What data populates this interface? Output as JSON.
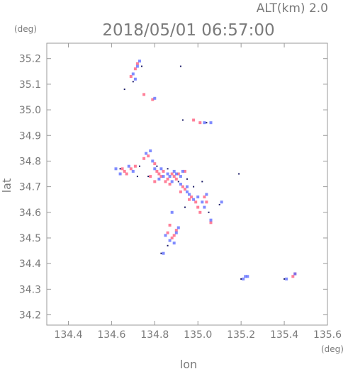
{
  "header": {
    "altitude": "ALT(km) 2.0",
    "timestamp": "2018/05/01 06:57:00",
    "y_unit": "(deg)",
    "x_unit": "(deg)"
  },
  "chart_data": {
    "type": "scatter",
    "title": "2018/05/01 06:57:00",
    "subtitle": "ALT(km) 2.0",
    "xlabel": "lon",
    "ylabel": "lat",
    "xlim": [
      134.3,
      135.6
    ],
    "ylim": [
      34.16,
      35.26
    ],
    "x_ticks": [
      134.4,
      134.6,
      134.8,
      135.0,
      135.2,
      135.4,
      135.6
    ],
    "y_ticks": [
      34.2,
      34.3,
      34.4,
      34.5,
      34.6,
      34.7,
      34.8,
      34.9,
      35.0,
      35.1,
      35.2
    ],
    "x_tick_labels": [
      "134.4",
      "134.6",
      "134.8",
      "135.0",
      "135.2",
      "135.4",
      "135.6"
    ],
    "y_tick_labels": [
      "34.2",
      "34.3",
      "34.4",
      "34.5",
      "34.6",
      "34.7",
      "34.8",
      "34.9",
      "35.0",
      "35.1",
      "35.2"
    ],
    "grid": false,
    "colors": {
      "positive": "#ff5577",
      "negative": "#5566ff",
      "dark": "#000055"
    },
    "series": [
      {
        "color": "positive",
        "points": [
          [
            134.72,
            35.18
          ],
          [
            134.71,
            35.16
          ],
          [
            134.69,
            35.13
          ],
          [
            134.75,
            35.06
          ],
          [
            134.79,
            35.04
          ],
          [
            134.71,
            34.78
          ],
          [
            134.65,
            34.77
          ],
          [
            134.66,
            34.76
          ],
          [
            134.67,
            34.75
          ],
          [
            134.69,
            34.77
          ],
          [
            134.75,
            34.81
          ],
          [
            134.77,
            34.82
          ],
          [
            134.8,
            34.79
          ],
          [
            134.81,
            34.76
          ],
          [
            134.82,
            34.75
          ],
          [
            134.83,
            34.74
          ],
          [
            134.84,
            34.76
          ],
          [
            134.85,
            34.72
          ],
          [
            134.86,
            34.73
          ],
          [
            134.87,
            34.71
          ],
          [
            134.88,
            34.75
          ],
          [
            134.89,
            34.74
          ],
          [
            134.9,
            34.73
          ],
          [
            134.91,
            34.75
          ],
          [
            134.93,
            34.7
          ],
          [
            134.94,
            34.69
          ],
          [
            134.96,
            34.65
          ],
          [
            134.97,
            34.66
          ],
          [
            134.99,
            34.64
          ],
          [
            135.01,
            34.6
          ],
          [
            135.03,
            34.66
          ],
          [
            135.04,
            34.64
          ],
          [
            134.86,
            34.52
          ],
          [
            134.88,
            34.5
          ],
          [
            134.89,
            34.51
          ],
          [
            134.9,
            34.53
          ],
          [
            135.01,
            34.95
          ],
          [
            134.98,
            34.96
          ],
          [
            135.45,
            34.36
          ],
          [
            135.44,
            34.35
          ],
          [
            134.78,
            34.74
          ],
          [
            134.8,
            34.72
          ],
          [
            134.92,
            34.68
          ],
          [
            135.06,
            34.56
          ],
          [
            134.94,
            34.76
          ],
          [
            135.0,
            34.62
          ],
          [
            134.87,
            34.55
          ]
        ]
      },
      {
        "color": "negative",
        "points": [
          [
            134.73,
            35.19
          ],
          [
            134.72,
            35.17
          ],
          [
            134.7,
            35.14
          ],
          [
            134.71,
            35.12
          ],
          [
            134.8,
            35.045
          ],
          [
            134.62,
            34.77
          ],
          [
            134.64,
            34.75
          ],
          [
            134.68,
            34.78
          ],
          [
            134.7,
            34.76
          ],
          [
            134.76,
            34.83
          ],
          [
            134.78,
            34.84
          ],
          [
            134.79,
            34.8
          ],
          [
            134.8,
            34.77
          ],
          [
            134.82,
            34.73
          ],
          [
            134.83,
            34.77
          ],
          [
            134.84,
            34.74
          ],
          [
            134.86,
            34.75
          ],
          [
            134.87,
            34.74
          ],
          [
            134.88,
            34.72
          ],
          [
            134.89,
            34.76
          ],
          [
            134.9,
            34.75
          ],
          [
            134.92,
            34.74
          ],
          [
            134.93,
            34.76
          ],
          [
            134.92,
            34.71
          ],
          [
            134.95,
            34.68
          ],
          [
            134.96,
            34.67
          ],
          [
            134.98,
            34.65
          ],
          [
            135.0,
            34.66
          ],
          [
            135.02,
            34.64
          ],
          [
            135.03,
            34.62
          ],
          [
            135.04,
            34.67
          ],
          [
            135.06,
            34.57
          ],
          [
            134.85,
            34.51
          ],
          [
            134.87,
            34.49
          ],
          [
            134.89,
            34.48
          ],
          [
            134.9,
            34.52
          ],
          [
            134.91,
            34.54
          ],
          [
            134.84,
            34.44
          ],
          [
            135.03,
            34.95
          ],
          [
            135.06,
            34.95
          ],
          [
            135.21,
            34.34
          ],
          [
            135.22,
            34.35
          ],
          [
            135.23,
            34.35
          ],
          [
            135.41,
            34.34
          ],
          [
            135.45,
            34.36
          ],
          [
            134.95,
            34.7
          ],
          [
            135.11,
            34.64
          ],
          [
            134.88,
            34.6
          ]
        ]
      },
      {
        "color": "dark",
        "points": [
          [
            134.66,
            35.08
          ],
          [
            134.7,
            35.11
          ],
          [
            134.74,
            35.17
          ],
          [
            134.92,
            35.17
          ],
          [
            134.93,
            34.96
          ],
          [
            135.04,
            34.95
          ],
          [
            134.73,
            34.78
          ],
          [
            134.77,
            34.74
          ],
          [
            134.81,
            34.78
          ],
          [
            134.86,
            34.77
          ],
          [
            134.91,
            34.72
          ],
          [
            134.95,
            34.73
          ],
          [
            134.98,
            34.7
          ],
          [
            135.02,
            34.72
          ],
          [
            135.05,
            34.6
          ],
          [
            135.1,
            34.63
          ],
          [
            135.19,
            34.75
          ],
          [
            134.86,
            34.47
          ],
          [
            134.83,
            34.44
          ],
          [
            135.4,
            34.34
          ],
          [
            135.2,
            34.34
          ],
          [
            134.72,
            34.74
          ],
          [
            134.64,
            34.77
          ],
          [
            134.94,
            34.62
          ]
        ]
      }
    ]
  }
}
